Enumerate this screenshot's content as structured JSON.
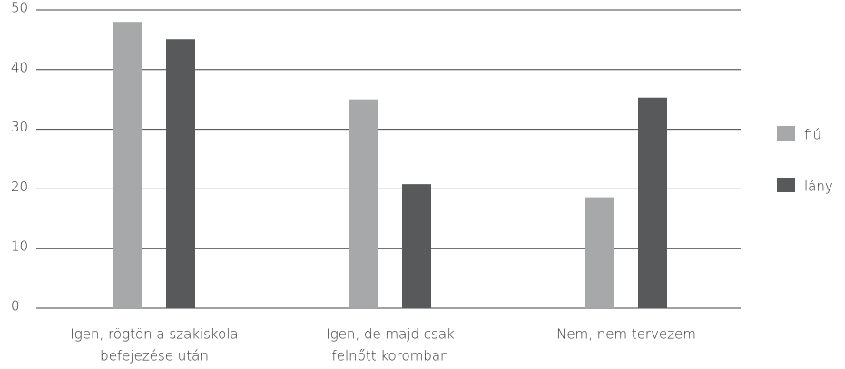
{
  "chart_data": {
    "type": "bar",
    "categories": [
      [
        "Igen, rögtön a szakiskola",
        "befejezése után"
      ],
      [
        "Igen, de majd csak",
        "felnőtt koromban"
      ],
      [
        "Nem, nem tervezem"
      ]
    ],
    "series": [
      {
        "name": "fiú",
        "color": "#a7a8aa",
        "values": [
          48,
          35,
          18.6
        ]
      },
      {
        "name": "lány",
        "color": "#58595b",
        "values": [
          45.1,
          20.8,
          35.3
        ]
      }
    ],
    "ylim": [
      0,
      50
    ],
    "yticks": [
      0,
      10,
      20,
      30,
      40,
      50
    ],
    "grid": true,
    "legend": "right"
  }
}
